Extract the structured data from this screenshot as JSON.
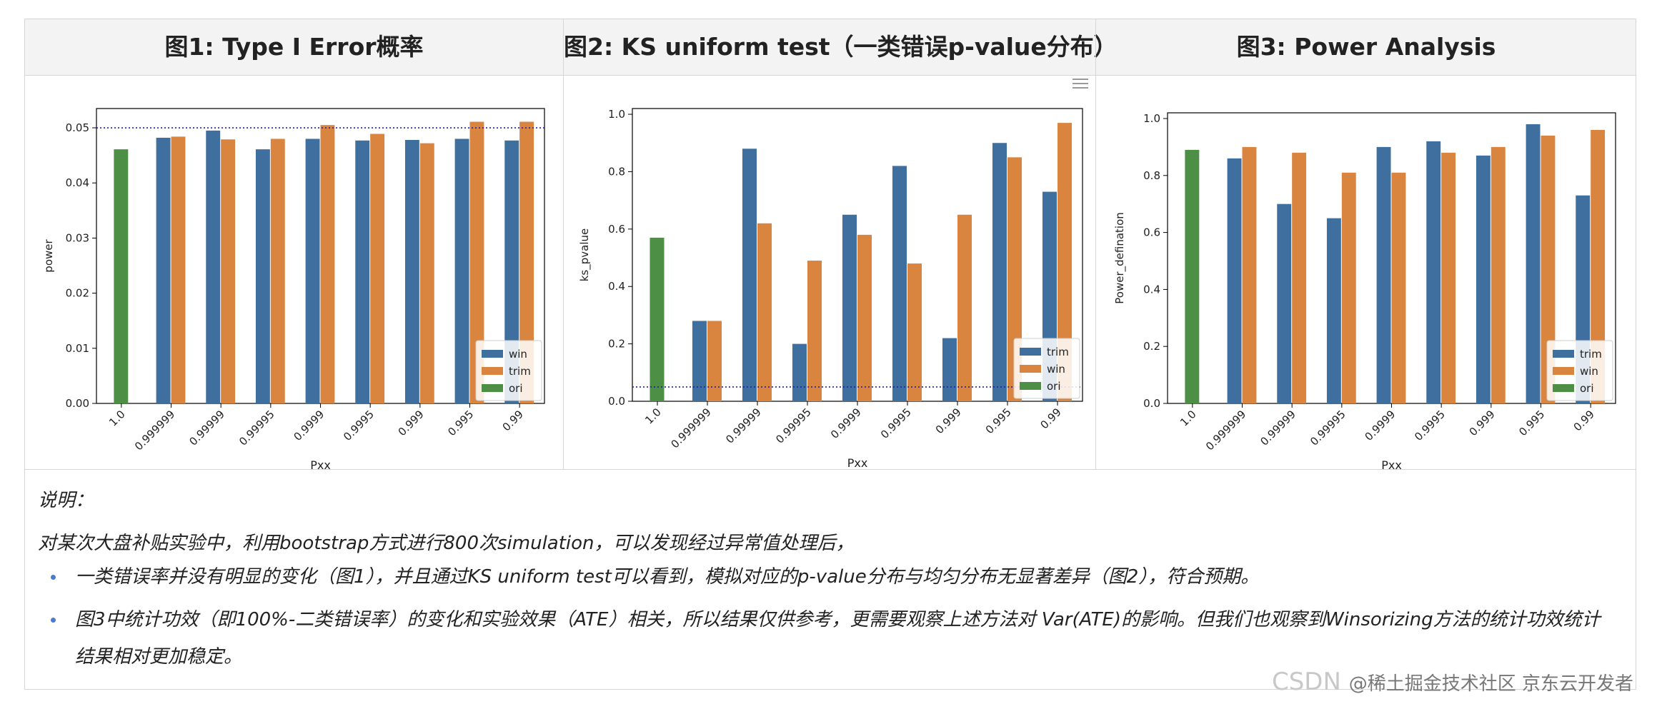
{
  "panels": [
    {
      "title": "图1: Type I Error概率"
    },
    {
      "title": "图2: KS uniform test（一类错误p-value分布）"
    },
    {
      "title": "图3: Power Analysis"
    }
  ],
  "notes": {
    "label": "说明：",
    "intro": "对某次大盘补贴实验中，利用bootstrap方式进行800次simulation，可以发现经过异常值处理后，",
    "bullets": [
      "一类错误率并没有明显的变化（图1），并且通过KS uniform test可以看到，模拟对应的p-value分布与均匀分布无显著差异（图2），符合预期。",
      "图3中统计功效（即100%-二类错误率）的变化和实验效果（ATE）相关，所以结果仅供参考，更需要观察上述方法对 Var(ATE)的影响。但我们也观察到Winsorizing方法的统计功效统计结果相对更加稳定。"
    ]
  },
  "watermark": {
    "csdn": "CSDN",
    "text": "@稀土掘金技术社区 京东云开发者"
  },
  "colors": {
    "blue": "#3e6f9e",
    "orange": "#d9843f",
    "green": "#4d8f45",
    "ref_line": "#1f1fb4"
  },
  "chart_data": [
    {
      "type": "bar",
      "title": "",
      "xlabel": "Pxx",
      "ylabel": "power",
      "categories": [
        "1.0",
        "0.999999",
        "0.99999",
        "0.99995",
        "0.9999",
        "0.9995",
        "0.999",
        "0.995",
        "0.99"
      ],
      "series": [
        {
          "name": "win",
          "color": "#3e6f9e",
          "values": [
            null,
            0.0482,
            0.0495,
            0.0461,
            0.048,
            0.0477,
            0.0478,
            0.048,
            0.0477
          ]
        },
        {
          "name": "trim",
          "color": "#d9843f",
          "values": [
            null,
            0.0484,
            0.0479,
            0.048,
            0.0505,
            0.0489,
            0.0472,
            0.0511,
            0.0511
          ]
        },
        {
          "name": "ori",
          "color": "#4d8f45",
          "values": [
            0.0461,
            null,
            null,
            null,
            null,
            null,
            null,
            null,
            null
          ]
        }
      ],
      "ylim": [
        0,
        0.0535
      ],
      "yticks": [
        "0.00",
        "0.01",
        "0.02",
        "0.03",
        "0.04",
        "0.05"
      ],
      "ytick_values": [
        0,
        0.01,
        0.02,
        0.03,
        0.04,
        0.05
      ],
      "ref_line": 0.05,
      "legend": "bottom-right"
    },
    {
      "type": "bar",
      "title": "",
      "xlabel": "Pxx",
      "ylabel": "ks_pvalue",
      "categories": [
        "1.0",
        "0.999999",
        "0.99999",
        "0.99995",
        "0.9999",
        "0.9995",
        "0.999",
        "0.995",
        "0.99"
      ],
      "series": [
        {
          "name": "trim",
          "color": "#3e6f9e",
          "values": [
            null,
            0.28,
            0.88,
            0.2,
            0.65,
            0.82,
            0.22,
            0.9,
            0.73
          ]
        },
        {
          "name": "win",
          "color": "#d9843f",
          "values": [
            null,
            0.28,
            0.62,
            0.49,
            0.58,
            0.48,
            0.65,
            0.85,
            0.97
          ]
        },
        {
          "name": "ori",
          "color": "#4d8f45",
          "values": [
            0.57,
            null,
            null,
            null,
            null,
            null,
            null,
            null,
            null
          ]
        }
      ],
      "ylim": [
        0,
        1.02
      ],
      "yticks": [
        "0.0",
        "0.2",
        "0.4",
        "0.6",
        "0.8",
        "1.0"
      ],
      "ytick_values": [
        0,
        0.2,
        0.4,
        0.6,
        0.8,
        1.0
      ],
      "ref_line": 0.05,
      "legend": "bottom-right"
    },
    {
      "type": "bar",
      "title": "",
      "xlabel": "Pxx",
      "ylabel": "Power_defination",
      "categories": [
        "1.0",
        "0.999999",
        "0.99999",
        "0.99995",
        "0.9999",
        "0.9995",
        "0.999",
        "0.995",
        "0.99"
      ],
      "series": [
        {
          "name": "trim",
          "color": "#3e6f9e",
          "values": [
            null,
            0.86,
            0.7,
            0.65,
            0.9,
            0.92,
            0.87,
            0.98,
            0.73
          ]
        },
        {
          "name": "win",
          "color": "#d9843f",
          "values": [
            null,
            0.9,
            0.88,
            0.81,
            0.81,
            0.88,
            0.9,
            0.94,
            0.96
          ]
        },
        {
          "name": "ori",
          "color": "#4d8f45",
          "values": [
            0.89,
            null,
            null,
            null,
            null,
            null,
            null,
            null,
            null
          ]
        }
      ],
      "ylim": [
        0,
        1.02
      ],
      "yticks": [
        "0.0",
        "0.2",
        "0.4",
        "0.6",
        "0.8",
        "1.0"
      ],
      "ytick_values": [
        0,
        0.2,
        0.4,
        0.6,
        0.8,
        1.0
      ],
      "ref_line": null,
      "legend": "bottom-right"
    }
  ]
}
